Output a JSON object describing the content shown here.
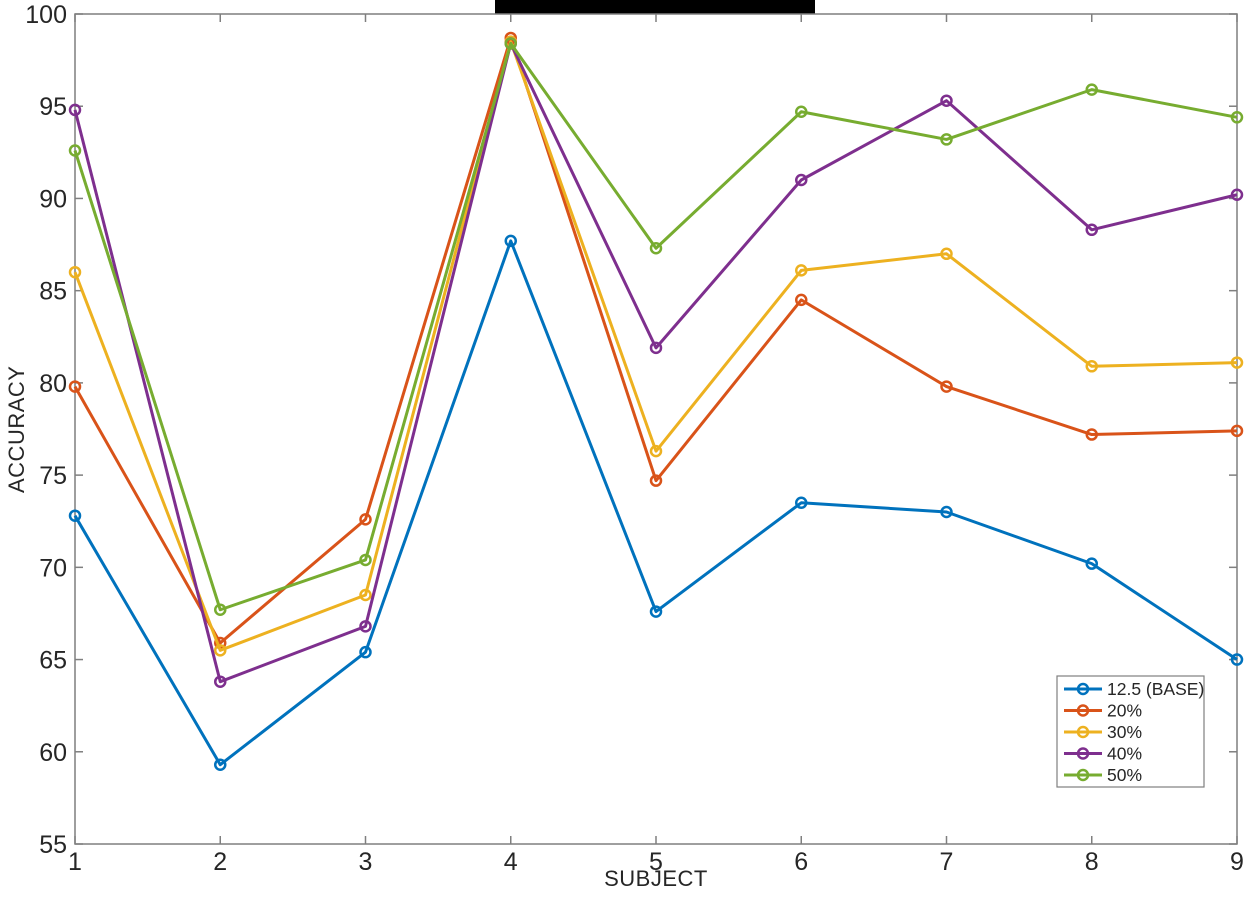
{
  "style": {
    "background": "#FFFFFF",
    "axis_color": "#7F7F7F",
    "text_color": "#262626",
    "redaction_bar_color": "#000000",
    "legend_border_color": "#7F7F7F",
    "title_redacted": true
  },
  "chart_data": {
    "type": "line",
    "xlabel": "SUBJECT",
    "ylabel": "ACCURACY",
    "xlim": [
      1,
      9
    ],
    "ylim": [
      55,
      100
    ],
    "xticks": [
      1,
      2,
      3,
      4,
      5,
      6,
      7,
      8,
      9
    ],
    "yticks": [
      55,
      60,
      65,
      70,
      75,
      80,
      85,
      90,
      95,
      100
    ],
    "grid": false,
    "legend_position": "inside-bottom-right",
    "marker": "open-circle",
    "x": [
      1,
      2,
      3,
      4,
      5,
      6,
      7,
      8,
      9
    ],
    "series": [
      {
        "name": "12.5 (BASE)",
        "color": "#0072BD",
        "values": [
          72.8,
          59.3,
          65.4,
          87.7,
          67.6,
          73.5,
          73.0,
          70.2,
          65.0
        ]
      },
      {
        "name": "20%",
        "color": "#D95319",
        "values": [
          79.8,
          65.9,
          72.6,
          98.7,
          74.7,
          84.5,
          79.8,
          77.2,
          77.4
        ]
      },
      {
        "name": "30%",
        "color": "#EDB120",
        "values": [
          86.0,
          65.5,
          68.5,
          98.5,
          76.3,
          86.1,
          87.0,
          80.9,
          81.1
        ]
      },
      {
        "name": "40%",
        "color": "#7E2F8E",
        "values": [
          94.8,
          63.8,
          66.8,
          98.4,
          81.9,
          91.0,
          95.3,
          88.3,
          90.2
        ]
      },
      {
        "name": "50%",
        "color": "#77AC30",
        "values": [
          92.6,
          67.7,
          70.4,
          98.4,
          87.3,
          94.7,
          93.2,
          95.9,
          94.4
        ]
      }
    ]
  }
}
